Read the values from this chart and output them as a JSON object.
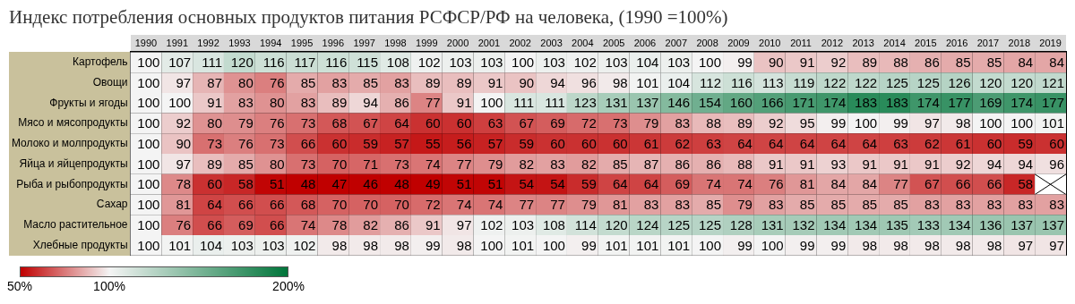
{
  "chart_data": {
    "type": "heatmap",
    "title": "Индекс потребления основных продуктов питания РСФСР/РФ на человека, (1990 =100%)",
    "categories": [
      "1990",
      "1991",
      "1992",
      "1993",
      "1994",
      "1995",
      "1996",
      "1997",
      "1998",
      "1999",
      "2000",
      "2001",
      "2002",
      "2003",
      "2004",
      "2005",
      "2006",
      "2007",
      "2008",
      "2009",
      "2010",
      "2011",
      "2012",
      "2013",
      "2014",
      "2015",
      "2016",
      "2017",
      "2018",
      "2019"
    ],
    "y_categories": [
      "Картофель",
      "Овощи",
      "Фрукты и ягоды",
      "Мясо и мясопродукты",
      "Молоко и молпродукты",
      "Яйца и яйцепродукты",
      "Рыба и рыбопродукты",
      "Сахар",
      "Масло растительное",
      "Хлебные продукты"
    ],
    "cells": [
      [
        100,
        107,
        111,
        120,
        116,
        117,
        116,
        115,
        108,
        102,
        103,
        103,
        100,
        103,
        102,
        103,
        104,
        103,
        100,
        99,
        90,
        91,
        92,
        89,
        88,
        86,
        85,
        85,
        84,
        84
      ],
      [
        100,
        97,
        87,
        80,
        76,
        85,
        83,
        85,
        83,
        89,
        89,
        91,
        90,
        94,
        96,
        98,
        101,
        104,
        112,
        116,
        113,
        119,
        122,
        122,
        125,
        125,
        126,
        120,
        120,
        121
      ],
      [
        100,
        100,
        91,
        83,
        80,
        83,
        89,
        94,
        86,
        77,
        91,
        100,
        111,
        111,
        123,
        131,
        137,
        146,
        154,
        160,
        166,
        171,
        174,
        183,
        183,
        174,
        177,
        169,
        174,
        177
      ],
      [
        100,
        92,
        80,
        79,
        76,
        73,
        68,
        67,
        64,
        60,
        60,
        63,
        67,
        69,
        72,
        73,
        79,
        83,
        88,
        89,
        92,
        95,
        99,
        100,
        99,
        97,
        98,
        100,
        100,
        101
      ],
      [
        100,
        90,
        73,
        76,
        73,
        66,
        60,
        59,
        57,
        55,
        56,
        57,
        59,
        60,
        60,
        60,
        61,
        62,
        63,
        64,
        64,
        64,
        64,
        64,
        63,
        62,
        61,
        60,
        59,
        60
      ],
      [
        100,
        97,
        89,
        85,
        80,
        73,
        70,
        71,
        73,
        74,
        77,
        79,
        82,
        83,
        82,
        85,
        87,
        86,
        86,
        88,
        91,
        91,
        93,
        91,
        91,
        91,
        92,
        94,
        94,
        96
      ],
      [
        100,
        78,
        60,
        58,
        51,
        48,
        47,
        46,
        48,
        49,
        51,
        51,
        54,
        54,
        59,
        64,
        64,
        69,
        74,
        74,
        76,
        81,
        84,
        84,
        77,
        67,
        66,
        66,
        58,
        null
      ],
      [
        100,
        81,
        64,
        66,
        66,
        68,
        70,
        70,
        70,
        72,
        74,
        74,
        77,
        77,
        79,
        81,
        83,
        83,
        85,
        79,
        83,
        85,
        85,
        85,
        85,
        83,
        83,
        83,
        83,
        83
      ],
      [
        100,
        76,
        66,
        69,
        66,
        74,
        78,
        82,
        86,
        91,
        97,
        102,
        103,
        108,
        114,
        120,
        124,
        125,
        125,
        128,
        131,
        132,
        134,
        134,
        135,
        133,
        134,
        136,
        137,
        137
      ],
      [
        100,
        101,
        104,
        103,
        103,
        102,
        98,
        98,
        98,
        99,
        98,
        100,
        101,
        100,
        99,
        101,
        101,
        101,
        100,
        99,
        100,
        99,
        99,
        98,
        98,
        98,
        98,
        98,
        97,
        97
      ]
    ],
    "clim": [
      50,
      200
    ],
    "cticks": [
      {
        "value": 50,
        "label": "50%"
      },
      {
        "value": 100,
        "label": "100%"
      },
      {
        "value": 200,
        "label": "200%"
      }
    ],
    "colors": [
      "#c00000",
      "#f4f4f4",
      "#00753a"
    ],
    "data_labels": true
  }
}
